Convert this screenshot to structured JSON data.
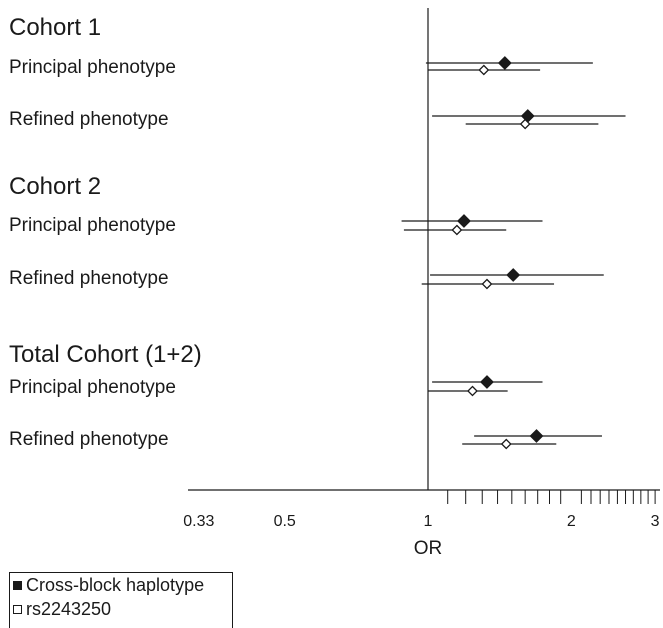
{
  "chart_data": {
    "type": "forest",
    "x_scale": "log",
    "xlabel": "OR",
    "xlim": [
      0.33,
      3.0
    ],
    "reference_line": 1,
    "tick_labels": [
      {
        "value": 0.33,
        "label": "0.33"
      },
      {
        "value": 0.5,
        "label": "0.5"
      },
      {
        "value": 1,
        "label": "1"
      },
      {
        "value": 2,
        "label": "2"
      },
      {
        "value": 3,
        "label": "3"
      }
    ],
    "minor_ticks": [
      1.1,
      1.2,
      1.3,
      1.4,
      1.5,
      1.6,
      1.7,
      1.8,
      1.9,
      2.1,
      2.2,
      2.3,
      2.4,
      2.5,
      2.6,
      2.7,
      2.8,
      2.9,
      3.0
    ],
    "groups": [
      {
        "title": "Cohort 1",
        "rows": [
          {
            "label": "Principal phenotype",
            "estimates": [
              {
                "series": "Cross-block haplotype",
                "or": 1.45,
                "ci": [
                  0.99,
                  2.22
                ]
              },
              {
                "series": "rs2243250",
                "or": 1.31,
                "ci": [
                  1.0,
                  1.72
                ]
              }
            ]
          },
          {
            "label": "Refined phenotype",
            "estimates": [
              {
                "series": "Cross-block haplotype",
                "or": 1.62,
                "ci": [
                  1.02,
                  2.6
                ]
              },
              {
                "series": "rs2243250",
                "or": 1.6,
                "ci": [
                  1.2,
                  2.28
                ]
              }
            ]
          }
        ]
      },
      {
        "title": "Cohort 2",
        "rows": [
          {
            "label": "Principal phenotype",
            "estimates": [
              {
                "series": "Cross-block haplotype",
                "or": 1.19,
                "ci": [
                  0.88,
                  1.74
                ]
              },
              {
                "series": "rs2243250",
                "or": 1.15,
                "ci": [
                  0.89,
                  1.46
                ]
              }
            ]
          },
          {
            "label": "Refined phenotype",
            "estimates": [
              {
                "series": "Cross-block haplotype",
                "or": 1.51,
                "ci": [
                  1.01,
                  2.34
                ]
              },
              {
                "series": "rs2243250",
                "or": 1.33,
                "ci": [
                  0.97,
                  1.84
                ]
              }
            ]
          }
        ]
      },
      {
        "title": "Total Cohort (1+2)",
        "rows": [
          {
            "label": "Principal phenotype",
            "estimates": [
              {
                "series": "Cross-block haplotype",
                "or": 1.33,
                "ci": [
                  1.02,
                  1.74
                ]
              },
              {
                "series": "rs2243250",
                "or": 1.24,
                "ci": [
                  1.0,
                  1.47
                ]
              }
            ]
          },
          {
            "label": "Refined phenotype",
            "estimates": [
              {
                "series": "Cross-block haplotype",
                "or": 1.69,
                "ci": [
                  1.25,
                  2.32
                ]
              },
              {
                "series": "rs2243250",
                "or": 1.46,
                "ci": [
                  1.18,
                  1.86
                ]
              }
            ]
          }
        ]
      }
    ],
    "legend": {
      "placement": "bottom-left",
      "entries": [
        {
          "label": "Cross-block haplotype",
          "marker": "filled-square"
        },
        {
          "label": "rs2243250",
          "marker": "open-square"
        }
      ]
    }
  }
}
